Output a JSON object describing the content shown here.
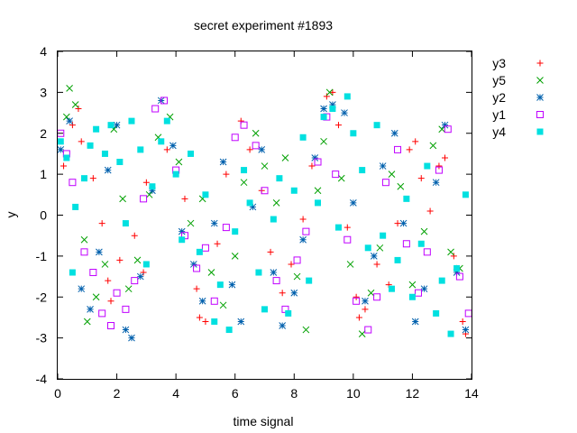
{
  "chart_data": {
    "type": "scatter",
    "title": "secret experiment #1893",
    "xlabel": "time signal",
    "ylabel": "y",
    "xlim": [
      0,
      14
    ],
    "ylim": [
      -4,
      4
    ],
    "xticks": [
      "0",
      "2",
      "4",
      "6",
      "8",
      "10",
      "12",
      "14"
    ],
    "yticks": [
      "4",
      "3",
      "2",
      "1",
      "0",
      "-1",
      "-2",
      "-3",
      "-4"
    ],
    "grid": false,
    "legend_position": "outside-right",
    "series": [
      {
        "name": "y3",
        "marker": "plus",
        "color": "#ff0000",
        "x": [
          0.2,
          0.5,
          0.7,
          0.8,
          1.2,
          1.5,
          1.7,
          1.8,
          2.1,
          2.6,
          2.9,
          3.0,
          3.7,
          4.3,
          4.7,
          4.8,
          5.0,
          5.4,
          5.7,
          6.2,
          6.5,
          6.9,
          7.2,
          7.6,
          7.9,
          8.3,
          8.6,
          9.1,
          9.3,
          9.5,
          9.8,
          10.1,
          10.2,
          10.4,
          10.8,
          11.2,
          11.5,
          11.9,
          12.1,
          12.3,
          12.6,
          12.9,
          13.1,
          13.4,
          13.7,
          13.8
        ],
        "y": [
          1.2,
          2.2,
          2.6,
          1.8,
          0.9,
          -0.2,
          -1.6,
          -2.1,
          -1.1,
          -0.5,
          -1.4,
          0.8,
          1.6,
          0.4,
          -1.8,
          -2.5,
          -2.6,
          -0.7,
          1.0,
          2.3,
          1.6,
          0.6,
          -0.9,
          -1.9,
          -1.2,
          -0.1,
          1.2,
          2.9,
          3.0,
          2.2,
          -0.3,
          -2.0,
          -2.5,
          -2.3,
          -1.2,
          -1.7,
          -0.2,
          1.6,
          1.8,
          0.9,
          0.1,
          1.2,
          1.4,
          -1.0,
          -2.6,
          -2.9
        ]
      },
      {
        "name": "y5",
        "marker": "cross",
        "color": "#00a000",
        "x": [
          0.3,
          0.4,
          0.6,
          0.9,
          1.0,
          1.3,
          1.6,
          1.9,
          2.2,
          2.4,
          2.7,
          3.1,
          3.4,
          3.8,
          4.1,
          4.5,
          4.9,
          5.2,
          5.6,
          6.0,
          6.3,
          6.7,
          7.0,
          7.4,
          7.7,
          8.1,
          8.4,
          8.8,
          9.0,
          9.2,
          9.6,
          9.9,
          10.3,
          10.6,
          10.9,
          11.3,
          11.6,
          12.0,
          12.4,
          12.7,
          13.0,
          13.3,
          13.6
        ],
        "y": [
          2.4,
          3.1,
          2.7,
          -0.6,
          -2.6,
          -2.0,
          -1.2,
          2.1,
          0.4,
          -1.8,
          -1.1,
          0.5,
          1.9,
          2.4,
          1.3,
          -0.2,
          0.4,
          -1.4,
          -2.2,
          -1.0,
          0.8,
          2.0,
          1.2,
          0.3,
          1.4,
          -1.5,
          -2.8,
          0.6,
          1.8,
          3.0,
          0.9,
          -1.2,
          -2.9,
          -1.9,
          -0.8,
          1.0,
          0.7,
          -1.7,
          -0.4,
          1.7,
          2.1,
          -0.9,
          -1.3
        ]
      },
      {
        "name": "y2",
        "marker": "star",
        "color": "#0060ad",
        "x": [
          0.1,
          0.4,
          0.8,
          1.1,
          1.4,
          1.7,
          2.0,
          2.3,
          2.5,
          2.8,
          3.2,
          3.5,
          3.9,
          4.2,
          4.6,
          4.9,
          5.3,
          5.6,
          5.9,
          6.2,
          6.6,
          6.9,
          7.3,
          7.6,
          8.0,
          8.3,
          8.7,
          9.0,
          9.3,
          9.7,
          10.0,
          10.4,
          10.7,
          11.0,
          11.4,
          11.7,
          12.1,
          12.4,
          12.8,
          13.1,
          13.5,
          13.8
        ],
        "y": [
          1.6,
          2.3,
          -1.8,
          -2.3,
          -0.9,
          1.1,
          2.2,
          -2.8,
          -3.0,
          -1.5,
          0.6,
          2.8,
          1.7,
          -0.4,
          -1.2,
          -2.1,
          -0.2,
          1.3,
          -1.7,
          -2.6,
          0.2,
          1.6,
          -1.4,
          -2.7,
          -1.9,
          -0.6,
          1.4,
          2.6,
          2.7,
          2.5,
          0.3,
          -2.1,
          -1.0,
          1.2,
          2.0,
          -0.2,
          -2.6,
          -1.8,
          0.8,
          2.2,
          -1.4,
          -2.8
        ]
      },
      {
        "name": "y1",
        "marker": "square-open",
        "color": "#c000ff",
        "x": [
          0.1,
          0.3,
          0.5,
          0.9,
          1.2,
          1.5,
          1.8,
          2.0,
          2.3,
          2.6,
          2.9,
          3.3,
          3.6,
          4.0,
          4.3,
          4.7,
          5.0,
          5.3,
          5.7,
          6.0,
          6.3,
          6.7,
          7.0,
          7.4,
          7.7,
          8.1,
          8.4,
          8.8,
          9.1,
          9.4,
          9.8,
          10.1,
          10.5,
          10.8,
          11.1,
          11.5,
          11.8,
          12.2,
          12.5,
          12.9,
          13.2,
          13.6,
          13.9
        ],
        "y": [
          2.0,
          1.5,
          0.8,
          -0.9,
          -1.4,
          -2.4,
          -2.7,
          -1.9,
          -2.3,
          -1.6,
          0.4,
          2.6,
          2.8,
          1.1,
          -0.5,
          -1.3,
          -0.8,
          -2.1,
          -0.3,
          1.9,
          2.2,
          1.7,
          0.6,
          -1.6,
          -2.3,
          -1.1,
          -0.4,
          1.3,
          2.4,
          1.0,
          -0.6,
          -2.1,
          -2.8,
          -2.0,
          0.8,
          1.6,
          -0.7,
          -1.9,
          -0.9,
          1.1,
          2.1,
          -1.5,
          -2.4
        ]
      },
      {
        "name": "y4",
        "marker": "square-filled",
        "color": "#00e0e0",
        "x": [
          0.1,
          0.3,
          0.5,
          0.6,
          0.9,
          1.1,
          1.3,
          1.6,
          1.8,
          2.1,
          2.3,
          2.5,
          2.8,
          3.0,
          3.2,
          3.5,
          3.7,
          4.0,
          4.2,
          4.5,
          4.8,
          5.0,
          5.3,
          5.5,
          5.8,
          6.0,
          6.3,
          6.5,
          6.8,
          7.0,
          7.3,
          7.5,
          7.8,
          8.0,
          8.3,
          8.5,
          8.8,
          9.0,
          9.3,
          9.5,
          9.8,
          10.0,
          10.3,
          10.5,
          10.8,
          11.0,
          11.3,
          11.5,
          11.8,
          12.0,
          12.3,
          12.5,
          12.8,
          13.0,
          13.3,
          13.5,
          13.8
        ],
        "y": [
          1.8,
          1.4,
          -1.4,
          0.2,
          0.9,
          1.7,
          2.1,
          1.5,
          2.2,
          1.3,
          -0.2,
          2.3,
          1.6,
          -1.2,
          0.7,
          1.8,
          2.3,
          1.0,
          -0.6,
          1.5,
          -0.9,
          0.5,
          -2.6,
          -1.7,
          -2.8,
          -0.4,
          1.1,
          0.3,
          -1.4,
          -2.3,
          -0.1,
          0.9,
          -2.4,
          0.6,
          1.9,
          -1.6,
          0.3,
          2.4,
          2.6,
          -0.3,
          2.9,
          2.0,
          1.1,
          -0.8,
          2.2,
          -0.5,
          -1.8,
          -1.1,
          0.4,
          -2.0,
          -0.7,
          1.2,
          -2.4,
          -1.6,
          -2.9,
          -1.3,
          0.5
        ]
      }
    ]
  }
}
